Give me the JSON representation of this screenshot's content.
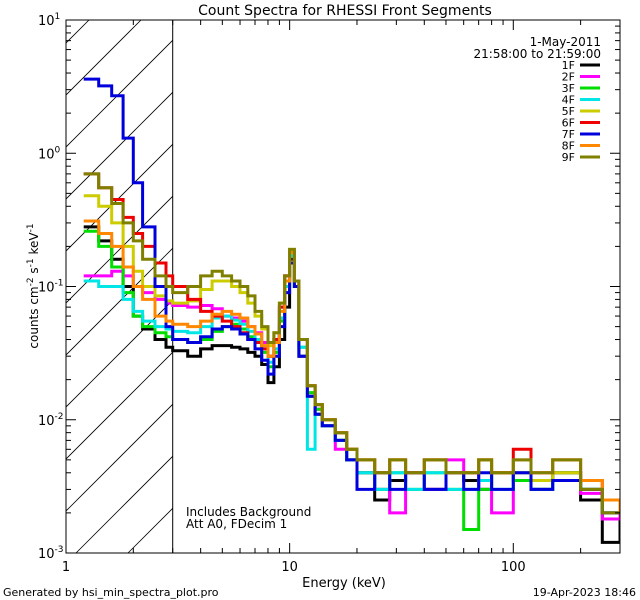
{
  "chart_data": {
    "type": "line",
    "step": true,
    "title": "Count Spectra for RHESSI Front Segments",
    "xlabel": "Energy (keV)",
    "ylabel_parts": [
      "counts cm",
      "-2",
      " s",
      "-1",
      " keV",
      "-1"
    ],
    "xscale": "log",
    "yscale": "log",
    "xlim": [
      1,
      300
    ],
    "ylim": [
      0.001,
      10
    ],
    "x_ticks": [
      {
        "value": 1,
        "label": "1"
      },
      {
        "value": 10,
        "label": "10"
      },
      {
        "value": 100,
        "label": "100"
      }
    ],
    "y_ticks": [
      {
        "value": 0.001,
        "base": "10",
        "exp": "-3"
      },
      {
        "value": 0.01,
        "base": "10",
        "exp": "-2"
      },
      {
        "value": 0.1,
        "base": "10",
        "exp": "-1"
      },
      {
        "value": 1,
        "base": "10",
        "exp": "0"
      },
      {
        "value": 10,
        "base": "10",
        "exp": "1"
      }
    ],
    "excluded_region": {
      "from": 1,
      "to": 3
    },
    "legend": {
      "position": "top-right",
      "date": "1-May-2011",
      "time_range": "21:58:00 to 21:59:00"
    },
    "annotations": [
      "Includes Background",
      "Att A0, FDecim 1"
    ],
    "series": [
      {
        "name": "1F",
        "color": "#000000",
        "x": [
          1.2,
          1.4,
          1.6,
          1.8,
          2.0,
          2.2,
          2.5,
          2.8,
          3.0,
          3.5,
          4.0,
          4.5,
          5.0,
          5.5,
          6.0,
          6.5,
          7.0,
          7.5,
          8.0,
          8.5,
          9.0,
          9.5,
          10.0,
          10.5,
          11.0,
          12,
          13,
          14,
          16,
          18,
          20,
          24,
          28,
          33,
          40,
          50,
          60,
          70,
          80,
          100,
          120,
          150,
          200,
          250,
          300
        ],
        "values": [
          0.28,
          0.22,
          0.16,
          0.1,
          0.06,
          0.048,
          0.04,
          0.035,
          0.033,
          0.03,
          0.034,
          0.036,
          0.036,
          0.035,
          0.034,
          0.032,
          0.03,
          0.026,
          0.019,
          0.025,
          0.04,
          0.07,
          0.16,
          0.1,
          0.03,
          0.015,
          0.011,
          0.009,
          0.007,
          0.005,
          0.004,
          0.0025,
          0.0035,
          0.004,
          0.003,
          0.004,
          0.0035,
          0.003,
          0.004,
          0.0035,
          0.003,
          0.004,
          0.0025,
          0.0012,
          0.002
        ]
      },
      {
        "name": "2F",
        "color": "#ff00ff",
        "x": [
          1.2,
          1.4,
          1.6,
          1.8,
          2.0,
          2.2,
          2.5,
          2.8,
          3.0,
          3.5,
          4.0,
          4.5,
          5.0,
          5.5,
          6.0,
          6.5,
          7.0,
          7.5,
          8.0,
          8.5,
          9.0,
          9.5,
          10.0,
          10.5,
          11.0,
          12,
          13,
          14,
          16,
          18,
          20,
          24,
          28,
          33,
          40,
          50,
          60,
          70,
          80,
          100,
          120,
          150,
          200,
          250,
          300
        ],
        "values": [
          0.12,
          0.12,
          0.13,
          0.12,
          0.1,
          0.09,
          0.08,
          0.075,
          0.072,
          0.07,
          0.072,
          0.068,
          0.06,
          0.058,
          0.055,
          0.05,
          0.045,
          0.038,
          0.03,
          0.04,
          0.07,
          0.12,
          0.18,
          0.11,
          0.04,
          0.018,
          0.012,
          0.009,
          0.006,
          0.005,
          0.004,
          0.003,
          0.002,
          0.004,
          0.003,
          0.005,
          0.004,
          0.003,
          0.002,
          0.004,
          0.003,
          0.004,
          0.0028,
          0.0018,
          0.002
        ]
      },
      {
        "name": "3F",
        "color": "#00dd00",
        "x": [
          1.2,
          1.4,
          1.6,
          1.8,
          2.0,
          2.2,
          2.5,
          2.8,
          3.0,
          3.5,
          4.0,
          4.5,
          5.0,
          5.5,
          6.0,
          6.5,
          7.0,
          7.5,
          8.0,
          8.5,
          9.0,
          9.5,
          10.0,
          10.5,
          11.0,
          12,
          13,
          14,
          16,
          18,
          20,
          24,
          28,
          33,
          40,
          50,
          60,
          70,
          80,
          100,
          120,
          150,
          200,
          250,
          300
        ],
        "values": [
          0.26,
          0.2,
          0.14,
          0.09,
          0.06,
          0.05,
          0.045,
          0.042,
          0.04,
          0.038,
          0.04,
          0.046,
          0.05,
          0.052,
          0.048,
          0.042,
          0.038,
          0.032,
          0.025,
          0.032,
          0.055,
          0.1,
          0.17,
          0.1,
          0.035,
          0.016,
          0.012,
          0.009,
          0.007,
          0.005,
          0.004,
          0.003,
          0.004,
          0.003,
          0.004,
          0.003,
          0.0015,
          0.003,
          0.004,
          0.0035,
          0.003,
          0.004,
          0.003,
          0.002,
          0.002
        ]
      },
      {
        "name": "4F",
        "color": "#00e5e5",
        "x": [
          1.2,
          1.4,
          1.6,
          1.8,
          2.0,
          2.2,
          2.5,
          2.8,
          3.0,
          3.5,
          4.0,
          4.5,
          5.0,
          5.5,
          6.0,
          6.5,
          7.0,
          7.5,
          8.0,
          8.5,
          9.0,
          9.5,
          10.0,
          10.5,
          11.0,
          12,
          13,
          14,
          16,
          18,
          20,
          24,
          28,
          33,
          40,
          50,
          60,
          70,
          80,
          100,
          120,
          150,
          200,
          250,
          300
        ],
        "values": [
          0.11,
          0.1,
          0.1,
          0.08,
          0.065,
          0.055,
          0.05,
          0.048,
          0.046,
          0.045,
          0.05,
          0.058,
          0.06,
          0.056,
          0.052,
          0.046,
          0.04,
          0.034,
          0.027,
          0.034,
          0.058,
          0.1,
          0.17,
          0.1,
          0.035,
          0.006,
          0.011,
          0.009,
          0.007,
          0.005,
          0.004,
          0.003,
          0.004,
          0.003,
          0.004,
          0.003,
          0.003,
          0.0035,
          0.003,
          0.004,
          0.003,
          0.0035,
          0.003,
          0.002,
          0.002
        ]
      },
      {
        "name": "5F",
        "color": "#cccc00",
        "x": [
          1.2,
          1.4,
          1.6,
          1.8,
          2.0,
          2.2,
          2.5,
          2.8,
          3.0,
          3.5,
          4.0,
          4.5,
          5.0,
          5.5,
          6.0,
          6.5,
          7.0,
          7.5,
          8.0,
          8.5,
          9.0,
          9.5,
          10.0,
          10.5,
          11.0,
          12,
          13,
          14,
          16,
          18,
          20,
          24,
          28,
          33,
          40,
          50,
          60,
          70,
          80,
          100,
          120,
          150,
          200,
          250,
          300
        ],
        "values": [
          0.48,
          0.4,
          0.3,
          0.2,
          0.13,
          0.1,
          0.085,
          0.078,
          0.075,
          0.078,
          0.095,
          0.11,
          0.11,
          0.1,
          0.09,
          0.075,
          0.06,
          0.048,
          0.036,
          0.045,
          0.075,
          0.12,
          0.19,
          0.11,
          0.04,
          0.018,
          0.013,
          0.01,
          0.008,
          0.006,
          0.005,
          0.004,
          0.005,
          0.004,
          0.005,
          0.004,
          0.004,
          0.005,
          0.004,
          0.004,
          0.0035,
          0.004,
          0.003,
          0.002,
          0.002
        ]
      },
      {
        "name": "6F",
        "color": "#ee0000",
        "x": [
          1.2,
          1.4,
          1.6,
          1.8,
          2.0,
          2.2,
          2.5,
          2.8,
          3.0,
          3.5,
          4.0,
          4.5,
          5.0,
          5.5,
          6.0,
          6.5,
          7.0,
          7.5,
          8.0,
          8.5,
          9.0,
          9.5,
          10.0,
          10.5,
          11.0,
          12,
          13,
          14,
          16,
          18,
          20,
          24,
          28,
          33,
          40,
          50,
          60,
          70,
          80,
          100,
          120,
          150,
          200,
          250,
          300
        ],
        "values": [
          0.7,
          0.55,
          0.45,
          0.33,
          0.25,
          0.2,
          0.15,
          0.12,
          0.1,
          0.08,
          0.065,
          0.06,
          0.055,
          0.05,
          0.045,
          0.04,
          0.038,
          0.034,
          0.03,
          0.04,
          0.07,
          0.12,
          0.18,
          0.11,
          0.04,
          0.018,
          0.013,
          0.01,
          0.008,
          0.006,
          0.005,
          0.004,
          0.005,
          0.004,
          0.005,
          0.004,
          0.004,
          0.005,
          0.004,
          0.006,
          0.004,
          0.005,
          0.0035,
          0.0025,
          0.002
        ]
      },
      {
        "name": "7F",
        "color": "#0000dd",
        "x": [
          1.2,
          1.4,
          1.6,
          1.8,
          2.0,
          2.2,
          2.5,
          2.8,
          3.0,
          3.5,
          4.0,
          4.5,
          5.0,
          5.5,
          6.0,
          6.5,
          7.0,
          7.5,
          8.0,
          8.5,
          9.0,
          9.5,
          10.0,
          10.5,
          11.0,
          12,
          13,
          14,
          16,
          18,
          20,
          24,
          28,
          33,
          40,
          50,
          60,
          70,
          80,
          100,
          120,
          150,
          200,
          250,
          300
        ],
        "values": [
          3.6,
          3.2,
          2.7,
          1.3,
          0.6,
          0.28,
          0.1,
          0.05,
          0.04,
          0.038,
          0.042,
          0.048,
          0.05,
          0.048,
          0.044,
          0.04,
          0.034,
          0.028,
          0.022,
          0.03,
          0.05,
          0.09,
          0.15,
          0.1,
          0.03,
          0.015,
          0.011,
          0.009,
          0.007,
          0.005,
          0.003,
          0.004,
          0.003,
          0.004,
          0.003,
          0.004,
          0.003,
          0.004,
          0.003,
          0.004,
          0.003,
          0.0035,
          0.003,
          0.002,
          0.002
        ]
      },
      {
        "name": "8F",
        "color": "#ff8800",
        "x": [
          1.2,
          1.4,
          1.6,
          1.8,
          2.0,
          2.2,
          2.5,
          2.8,
          3.0,
          3.5,
          4.0,
          4.5,
          5.0,
          5.5,
          6.0,
          6.5,
          7.0,
          7.5,
          8.0,
          8.5,
          9.0,
          9.5,
          10.0,
          10.5,
          11.0,
          12,
          13,
          14,
          16,
          18,
          20,
          24,
          28,
          33,
          40,
          50,
          60,
          70,
          80,
          100,
          120,
          150,
          200,
          250,
          300
        ],
        "values": [
          0.31,
          0.25,
          0.2,
          0.14,
          0.1,
          0.08,
          0.06,
          0.055,
          0.052,
          0.05,
          0.055,
          0.062,
          0.065,
          0.062,
          0.058,
          0.05,
          0.044,
          0.036,
          0.03,
          0.038,
          0.065,
          0.11,
          0.18,
          0.11,
          0.04,
          0.018,
          0.013,
          0.01,
          0.008,
          0.006,
          0.005,
          0.004,
          0.005,
          0.004,
          0.005,
          0.004,
          0.004,
          0.005,
          0.004,
          0.005,
          0.004,
          0.005,
          0.0035,
          0.0025,
          0.002
        ]
      },
      {
        "name": "9F",
        "color": "#808000",
        "x": [
          1.2,
          1.4,
          1.6,
          1.8,
          2.0,
          2.2,
          2.5,
          2.8,
          3.0,
          3.5,
          4.0,
          4.5,
          5.0,
          5.5,
          6.0,
          6.5,
          7.0,
          7.5,
          8.0,
          8.5,
          9.0,
          9.5,
          10.0,
          10.5,
          11.0,
          12,
          13,
          14,
          16,
          18,
          20,
          24,
          28,
          33,
          40,
          50,
          60,
          70,
          80,
          100,
          120,
          150,
          200,
          250,
          300
        ],
        "values": [
          0.7,
          0.55,
          0.42,
          0.3,
          0.22,
          0.16,
          0.12,
          0.1,
          0.09,
          0.1,
          0.12,
          0.13,
          0.12,
          0.11,
          0.1,
          0.085,
          0.065,
          0.05,
          0.038,
          0.045,
          0.075,
          0.12,
          0.19,
          0.11,
          0.04,
          0.018,
          0.013,
          0.01,
          0.008,
          0.006,
          0.005,
          0.004,
          0.005,
          0.004,
          0.005,
          0.004,
          0.004,
          0.005,
          0.004,
          0.005,
          0.004,
          0.005,
          0.003,
          0.002,
          0.002
        ]
      }
    ]
  },
  "footer": {
    "generator": "Generated by hsi_min_spectra_plot.pro",
    "timestamp": "19-Apr-2023 18:46"
  }
}
